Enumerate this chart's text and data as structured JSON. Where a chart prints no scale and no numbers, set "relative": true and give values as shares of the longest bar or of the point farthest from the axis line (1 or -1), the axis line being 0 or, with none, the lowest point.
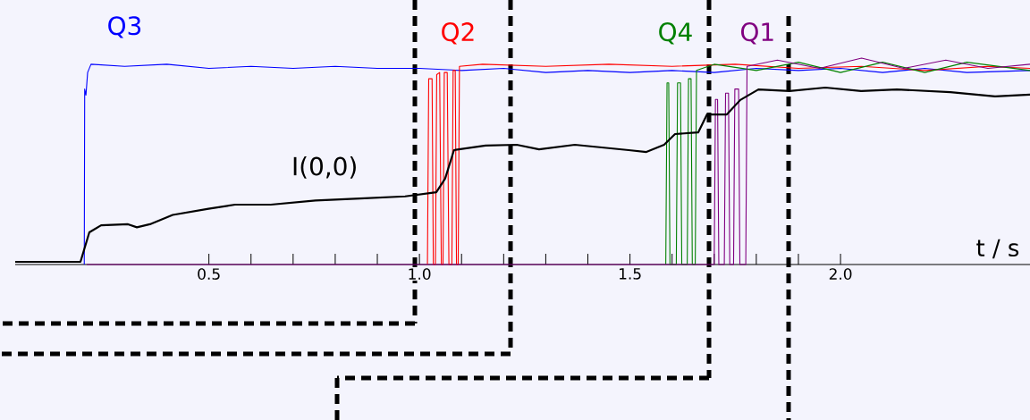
{
  "chart_data": {
    "type": "line",
    "relative": true,
    "xlabel": "t / s",
    "xlim": [
      0.04,
      2.45
    ],
    "xticks": [
      {
        "value": 0.5,
        "label": "0.5"
      },
      {
        "value": 0.6,
        "label": null
      },
      {
        "value": 0.7,
        "label": null
      },
      {
        "value": 0.8,
        "label": null
      },
      {
        "value": 0.9,
        "label": null
      },
      {
        "value": 1.0,
        "label": "1.0"
      },
      {
        "value": 1.1,
        "label": null
      },
      {
        "value": 1.2,
        "label": null
      },
      {
        "value": 1.3,
        "label": null
      },
      {
        "value": 1.4,
        "label": null
      },
      {
        "value": 1.5,
        "label": "1.5"
      },
      {
        "value": 1.6,
        "label": null
      },
      {
        "value": 1.7,
        "label": null
      },
      {
        "value": 1.8,
        "label": null
      },
      {
        "value": 1.9,
        "label": null
      },
      {
        "value": 2.0,
        "label": "2.0"
      }
    ],
    "grid": false,
    "legend": false,
    "marker": "none",
    "line_style": "solid",
    "series": [
      {
        "name": "Q3",
        "color": "#0000ff",
        "x": [
          0.204,
          0.205,
          0.208,
          0.212,
          0.22,
          0.3,
          0.4,
          0.5,
          0.6,
          0.7,
          0.8,
          0.9,
          1.0,
          1.1,
          1.2,
          1.3,
          1.4,
          1.5,
          1.6,
          1.7,
          1.8,
          1.9,
          2.0,
          2.1,
          2.2,
          2.3,
          2.45
        ],
        "values": [
          0,
          0.85,
          0.82,
          0.93,
          0.97,
          0.96,
          0.97,
          0.95,
          0.96,
          0.95,
          0.96,
          0.95,
          0.95,
          0.94,
          0.95,
          0.93,
          0.94,
          0.93,
          0.94,
          0.93,
          0.95,
          0.94,
          0.95,
          0.93,
          0.95,
          0.93,
          0.94
        ]
      },
      {
        "name": "Q2",
        "color": "#ff0000",
        "x": [
          1.019,
          1.022,
          1.03,
          1.033,
          1.038,
          1.041,
          1.048,
          1.052,
          1.056,
          1.059,
          1.066,
          1.07,
          1.077,
          1.08,
          1.085,
          1.088,
          1.092,
          1.095,
          1.15,
          1.3,
          1.45,
          1.6,
          1.75,
          1.9,
          2.05,
          2.2,
          2.35,
          2.45
        ],
        "values": [
          0,
          0.9,
          0.9,
          0,
          0,
          0.92,
          0.93,
          0,
          0,
          0.93,
          0.93,
          0,
          0,
          0.94,
          0.94,
          0,
          0,
          0.96,
          0.97,
          0.96,
          0.97,
          0.96,
          0.97,
          0.95,
          0.96,
          0.94,
          0.96,
          0.95
        ]
      },
      {
        "name": "Q4",
        "color": "#008000",
        "x": [
          1.585,
          1.588,
          1.592,
          1.595,
          1.61,
          1.613,
          1.62,
          1.623,
          1.636,
          1.639,
          1.645,
          1.648,
          1.655,
          1.658,
          1.7,
          1.8,
          1.9,
          2.0,
          2.1,
          2.2,
          2.3,
          2.45
        ],
        "values": [
          0,
          0.88,
          0.88,
          0,
          0,
          0.88,
          0.88,
          0,
          0,
          0.9,
          0.9,
          0,
          0,
          0.94,
          0.97,
          0.94,
          0.98,
          0.93,
          0.98,
          0.93,
          0.98,
          0.94
        ]
      },
      {
        "name": "Q1",
        "color": "#800080",
        "x": [
          0.21,
          1.7,
          1.703,
          1.708,
          1.711,
          1.724,
          1.727,
          1.734,
          1.737,
          1.746,
          1.749,
          1.758,
          1.761,
          1.775,
          1.778,
          1.85,
          1.95,
          2.05,
          2.15,
          2.25,
          2.35,
          2.45
        ],
        "values": [
          0,
          0,
          0.8,
          0.8,
          0,
          0,
          0.83,
          0.83,
          0,
          0,
          0.85,
          0.85,
          0,
          0,
          0.96,
          0.99,
          0.95,
          1,
          0.95,
          0.99,
          0.95,
          0.97
        ]
      },
      {
        "name": "I(0,0)",
        "color": "#000000",
        "x": [
          0.04,
          0.195,
          0.216,
          0.244,
          0.308,
          0.329,
          0.36,
          0.414,
          0.499,
          0.562,
          0.647,
          0.753,
          0.859,
          0.966,
          1.04,
          1.061,
          1.082,
          1.157,
          1.231,
          1.284,
          1.369,
          1.497,
          1.539,
          1.581,
          1.607,
          1.662,
          1.683,
          1.73,
          1.762,
          1.805,
          1.879,
          1.964,
          2.049,
          2.134,
          2.261,
          2.367,
          2.45
        ],
        "values": [
          0.013,
          0.013,
          0.156,
          0.19,
          0.195,
          0.18,
          0.195,
          0.24,
          0.27,
          0.29,
          0.29,
          0.31,
          0.32,
          0.33,
          0.35,
          0.416,
          0.554,
          0.576,
          0.58,
          0.558,
          0.58,
          0.554,
          0.545,
          0.58,
          0.632,
          0.64,
          0.727,
          0.727,
          0.797,
          0.848,
          0.84,
          0.857,
          0.84,
          0.848,
          0.835,
          0.814,
          0.823
        ]
      }
    ]
  }
}
